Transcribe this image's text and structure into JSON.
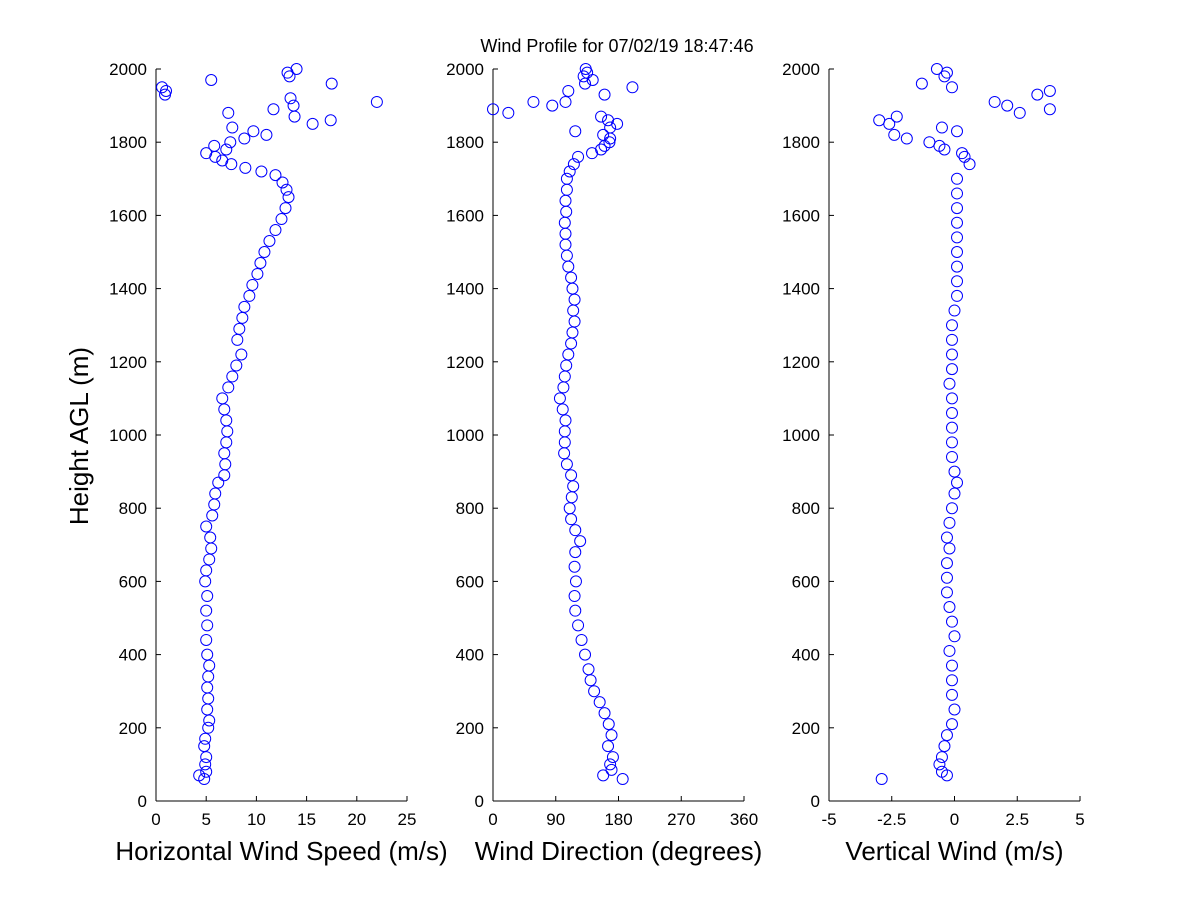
{
  "title": "Wind Profile for  07/02/19 18:47:46",
  "ylabel": "Height AGL (m)",
  "marker_color": "#0000ff",
  "chart_data": [
    {
      "type": "scatter",
      "xlabel": "Horizontal Wind Speed (m/s)",
      "xlim": [
        0,
        25
      ],
      "ylim": [
        0,
        2000
      ],
      "xticks": [
        0,
        5,
        10,
        15,
        20,
        25
      ],
      "xtick_labels": [
        "0",
        "5",
        "10",
        "15",
        "20",
        "25"
      ],
      "yticks": [
        0,
        200,
        400,
        600,
        800,
        1000,
        1200,
        1400,
        1600,
        1800,
        2000
      ],
      "ytick_labels": [
        "0",
        "200",
        "400",
        "600",
        "800",
        "1000",
        "1200",
        "1400",
        "1600",
        "1800",
        "2000"
      ],
      "profile": [
        [
          4.8,
          60
        ],
        [
          4.3,
          70
        ],
        [
          5.0,
          80
        ],
        [
          4.9,
          100
        ],
        [
          5.0,
          120
        ],
        [
          4.8,
          150
        ],
        [
          4.9,
          170
        ],
        [
          5.2,
          200
        ],
        [
          5.3,
          220
        ],
        [
          5.1,
          250
        ],
        [
          5.2,
          280
        ],
        [
          5.1,
          310
        ],
        [
          5.2,
          340
        ],
        [
          5.3,
          370
        ],
        [
          5.1,
          400
        ],
        [
          5.0,
          440
        ],
        [
          5.1,
          480
        ],
        [
          5.0,
          520
        ],
        [
          5.1,
          560
        ],
        [
          4.9,
          600
        ],
        [
          5.0,
          630
        ],
        [
          5.3,
          660
        ],
        [
          5.5,
          690
        ],
        [
          5.4,
          720
        ],
        [
          5.0,
          750
        ],
        [
          5.6,
          780
        ],
        [
          5.8,
          810
        ],
        [
          5.9,
          840
        ],
        [
          6.2,
          870
        ],
        [
          6.8,
          890
        ],
        [
          6.9,
          920
        ],
        [
          6.8,
          950
        ],
        [
          7.0,
          980
        ],
        [
          7.1,
          1010
        ],
        [
          7.0,
          1040
        ],
        [
          6.8,
          1070
        ],
        [
          6.6,
          1100
        ],
        [
          7.2,
          1130
        ],
        [
          7.6,
          1160
        ],
        [
          8.0,
          1190
        ],
        [
          8.5,
          1220
        ],
        [
          8.1,
          1260
        ],
        [
          8.3,
          1290
        ],
        [
          8.6,
          1320
        ],
        [
          8.8,
          1350
        ],
        [
          9.3,
          1380
        ],
        [
          9.6,
          1410
        ],
        [
          10.1,
          1440
        ],
        [
          10.4,
          1470
        ],
        [
          10.8,
          1500
        ],
        [
          11.3,
          1530
        ],
        [
          11.9,
          1560
        ],
        [
          12.5,
          1590
        ],
        [
          12.9,
          1620
        ],
        [
          13.2,
          1650
        ],
        [
          13.0,
          1670
        ],
        [
          12.6,
          1690
        ],
        [
          11.9,
          1710
        ],
        [
          10.5,
          1720
        ],
        [
          8.9,
          1730
        ],
        [
          7.5,
          1740
        ],
        [
          6.6,
          1750
        ],
        [
          5.9,
          1760
        ],
        [
          5.0,
          1770
        ],
        [
          7.0,
          1780
        ],
        [
          5.8,
          1790
        ],
        [
          7.4,
          1800
        ],
        [
          8.8,
          1810
        ],
        [
          11.0,
          1820
        ],
        [
          9.7,
          1830
        ],
        [
          7.6,
          1840
        ],
        [
          15.6,
          1850
        ],
        [
          17.4,
          1860
        ],
        [
          13.8,
          1870
        ],
        [
          7.2,
          1880
        ],
        [
          11.7,
          1890
        ],
        [
          13.7,
          1900
        ],
        [
          22.0,
          1910
        ],
        [
          13.4,
          1920
        ],
        [
          0.9,
          1930
        ],
        [
          1.0,
          1940
        ],
        [
          0.6,
          1950
        ],
        [
          17.5,
          1960
        ],
        [
          5.5,
          1970
        ],
        [
          13.3,
          1980
        ],
        [
          13.1,
          1990
        ],
        [
          14.0,
          2000
        ]
      ]
    },
    {
      "type": "scatter",
      "xlabel": "Wind Direction (degrees)",
      "xlim": [
        0,
        360
      ],
      "ylim": [
        0,
        2000
      ],
      "xticks": [
        0,
        90,
        180,
        270,
        360
      ],
      "xtick_labels": [
        "0",
        "90",
        "180",
        "270",
        "360"
      ],
      "yticks": [
        0,
        200,
        400,
        600,
        800,
        1000,
        1200,
        1400,
        1600,
        1800,
        2000
      ],
      "ytick_labels": [
        "0",
        "200",
        "400",
        "600",
        "800",
        "1000",
        "1200",
        "1400",
        "1600",
        "1800",
        "2000"
      ],
      "profile": [
        [
          186,
          60
        ],
        [
          158,
          70
        ],
        [
          170,
          85
        ],
        [
          168,
          100
        ],
        [
          172,
          120
        ],
        [
          165,
          150
        ],
        [
          170,
          180
        ],
        [
          166,
          210
        ],
        [
          160,
          240
        ],
        [
          153,
          270
        ],
        [
          145,
          300
        ],
        [
          140,
          330
        ],
        [
          137,
          360
        ],
        [
          132,
          400
        ],
        [
          127,
          440
        ],
        [
          122,
          480
        ],
        [
          118,
          520
        ],
        [
          117,
          560
        ],
        [
          119,
          600
        ],
        [
          117,
          640
        ],
        [
          118,
          680
        ],
        [
          125,
          710
        ],
        [
          118,
          740
        ],
        [
          112,
          770
        ],
        [
          110,
          800
        ],
        [
          113,
          830
        ],
        [
          115,
          860
        ],
        [
          112,
          890
        ],
        [
          106,
          920
        ],
        [
          102,
          950
        ],
        [
          103,
          980
        ],
        [
          103,
          1010
        ],
        [
          104,
          1040
        ],
        [
          100,
          1070
        ],
        [
          96,
          1100
        ],
        [
          101,
          1130
        ],
        [
          103,
          1160
        ],
        [
          105,
          1190
        ],
        [
          108,
          1220
        ],
        [
          112,
          1250
        ],
        [
          114,
          1280
        ],
        [
          117,
          1310
        ],
        [
          115,
          1340
        ],
        [
          117,
          1370
        ],
        [
          114,
          1400
        ],
        [
          112,
          1430
        ],
        [
          108,
          1460
        ],
        [
          106,
          1490
        ],
        [
          104,
          1520
        ],
        [
          104,
          1550
        ],
        [
          103,
          1580
        ],
        [
          105,
          1610
        ],
        [
          104,
          1640
        ],
        [
          106,
          1670
        ],
        [
          106,
          1700
        ],
        [
          110,
          1720
        ],
        [
          116,
          1740
        ],
        [
          122,
          1760
        ],
        [
          142,
          1770
        ],
        [
          155,
          1780
        ],
        [
          160,
          1790
        ],
        [
          167,
          1800
        ],
        [
          168,
          1810
        ],
        [
          158,
          1820
        ],
        [
          118,
          1830
        ],
        [
          168,
          1840
        ],
        [
          178,
          1850
        ],
        [
          165,
          1860
        ],
        [
          155,
          1870
        ],
        [
          22,
          1880
        ],
        [
          0,
          1890
        ],
        [
          85,
          1900
        ],
        [
          58,
          1910
        ],
        [
          104,
          1910
        ],
        [
          160,
          1930
        ],
        [
          108,
          1940
        ],
        [
          200,
          1950
        ],
        [
          132,
          1960
        ],
        [
          143,
          1970
        ],
        [
          130,
          1980
        ],
        [
          135,
          1990
        ],
        [
          133,
          2000
        ]
      ]
    },
    {
      "type": "scatter",
      "xlabel": "Vertical Wind (m/s)",
      "xlim": [
        -5,
        5
      ],
      "ylim": [
        0,
        2000
      ],
      "xticks": [
        -5,
        -2.5,
        0,
        2.5,
        5
      ],
      "xtick_labels": [
        "-5",
        "-2.5",
        "0",
        "2.5",
        "5"
      ],
      "yticks": [
        0,
        200,
        400,
        600,
        800,
        1000,
        1200,
        1400,
        1600,
        1800,
        2000
      ],
      "ytick_labels": [
        "0",
        "200",
        "400",
        "600",
        "800",
        "1000",
        "1200",
        "1400",
        "1600",
        "1800",
        "2000"
      ],
      "profile": [
        [
          -2.9,
          60
        ],
        [
          -0.3,
          70
        ],
        [
          -0.5,
          80
        ],
        [
          -0.6,
          100
        ],
        [
          -0.5,
          120
        ],
        [
          -0.4,
          150
        ],
        [
          -0.3,
          180
        ],
        [
          -0.1,
          210
        ],
        [
          0.0,
          250
        ],
        [
          -0.1,
          290
        ],
        [
          -0.1,
          330
        ],
        [
          -0.1,
          370
        ],
        [
          -0.2,
          410
        ],
        [
          0.0,
          450
        ],
        [
          -0.1,
          490
        ],
        [
          -0.2,
          530
        ],
        [
          -0.3,
          570
        ],
        [
          -0.3,
          610
        ],
        [
          -0.3,
          650
        ],
        [
          -0.2,
          690
        ],
        [
          -0.3,
          720
        ],
        [
          -0.2,
          760
        ],
        [
          -0.1,
          800
        ],
        [
          0.0,
          840
        ],
        [
          0.1,
          870
        ],
        [
          0.0,
          900
        ],
        [
          -0.1,
          940
        ],
        [
          -0.1,
          980
        ],
        [
          -0.1,
          1020
        ],
        [
          -0.1,
          1060
        ],
        [
          -0.1,
          1100
        ],
        [
          -0.2,
          1140
        ],
        [
          -0.1,
          1180
        ],
        [
          -0.1,
          1220
        ],
        [
          -0.1,
          1260
        ],
        [
          -0.1,
          1300
        ],
        [
          0.0,
          1340
        ],
        [
          0.1,
          1380
        ],
        [
          0.1,
          1420
        ],
        [
          0.1,
          1460
        ],
        [
          0.1,
          1500
        ],
        [
          0.1,
          1540
        ],
        [
          0.1,
          1580
        ],
        [
          0.1,
          1620
        ],
        [
          0.1,
          1660
        ],
        [
          0.1,
          1700
        ],
        [
          0.6,
          1740
        ],
        [
          0.4,
          1760
        ],
        [
          0.3,
          1770
        ],
        [
          -0.4,
          1780
        ],
        [
          -0.6,
          1790
        ],
        [
          -1.0,
          1800
        ],
        [
          -1.9,
          1810
        ],
        [
          -2.4,
          1820
        ],
        [
          0.1,
          1830
        ],
        [
          -0.5,
          1840
        ],
        [
          -2.6,
          1850
        ],
        [
          -3.0,
          1860
        ],
        [
          -2.3,
          1870
        ],
        [
          2.6,
          1880
        ],
        [
          3.8,
          1890
        ],
        [
          2.1,
          1900
        ],
        [
          1.6,
          1910
        ],
        [
          3.3,
          1930
        ],
        [
          3.8,
          1940
        ],
        [
          -0.1,
          1950
        ],
        [
          -1.3,
          1960
        ],
        [
          -0.4,
          1980
        ],
        [
          -0.3,
          1990
        ],
        [
          -0.7,
          2000
        ]
      ]
    }
  ]
}
